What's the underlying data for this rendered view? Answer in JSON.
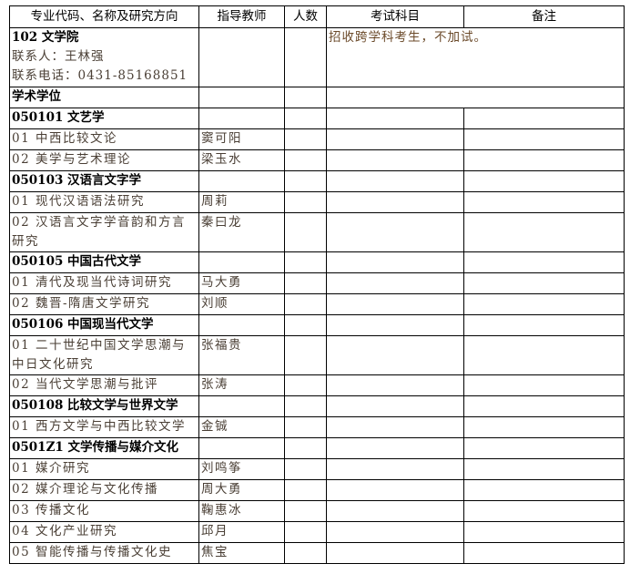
{
  "headers": [
    "专业代码、名称及研究方向",
    "指导教师",
    "人数",
    "考试科目",
    "备注"
  ],
  "department": {
    "name": "102 文学院",
    "contact": "联系人：王林强",
    "phone": "联系电话：0431-85168851",
    "note": "招收跨学科考生，不加试。"
  },
  "degree_type": "学术学位",
  "rows": [
    {
      "type": "major",
      "name": "050101  文艺学",
      "tutor": ""
    },
    {
      "type": "dir",
      "name": "01 中西比较文论",
      "tutor": "窦可阳"
    },
    {
      "type": "dir",
      "name": "02 美学与艺术理论",
      "tutor": "梁玉水"
    },
    {
      "type": "major",
      "name": "050103  汉语言文字学",
      "tutor": ""
    },
    {
      "type": "dir",
      "name": "01 现代汉语语法研究",
      "tutor": "周莉"
    },
    {
      "type": "dir",
      "name": "02 汉语言文字学音韵和方言研究",
      "tutor": "秦曰龙"
    },
    {
      "type": "major",
      "name": "050105  中国古代文学",
      "tutor": ""
    },
    {
      "type": "dir",
      "name": "01 清代及现当代诗词研究",
      "tutor": "马大勇"
    },
    {
      "type": "dir",
      "name": "02 魏晋-隋唐文学研究",
      "tutor": "刘顺"
    },
    {
      "type": "major",
      "name": "050106  中国现当代文学",
      "tutor": ""
    },
    {
      "type": "dir",
      "name": "01 二十世纪中国文学思潮与中日文化研究",
      "tutor": "张福贵"
    },
    {
      "type": "dir",
      "name": "02 当代文学思潮与批评",
      "tutor": "张涛"
    },
    {
      "type": "major",
      "name": "050108  比较文学与世界文学",
      "tutor": ""
    },
    {
      "type": "dir",
      "name": "01 西方文学与中西比较文学",
      "tutor": "金铖"
    },
    {
      "type": "major",
      "name": "0501Z1  文学传播与媒介文化",
      "tutor": ""
    },
    {
      "type": "dir",
      "name": "01 媒介研究",
      "tutor": "刘鸣筝"
    },
    {
      "type": "dir",
      "name": "02 媒介理论与文化传播",
      "tutor": "周大勇"
    },
    {
      "type": "dir",
      "name": "03 传播文化",
      "tutor": "鞠惠冰"
    },
    {
      "type": "dir",
      "name": "04 文化产业研究",
      "tutor": "邱月"
    },
    {
      "type": "dir",
      "name": "05 智能传播与传播文化史",
      "tutor": "焦宝"
    }
  ]
}
